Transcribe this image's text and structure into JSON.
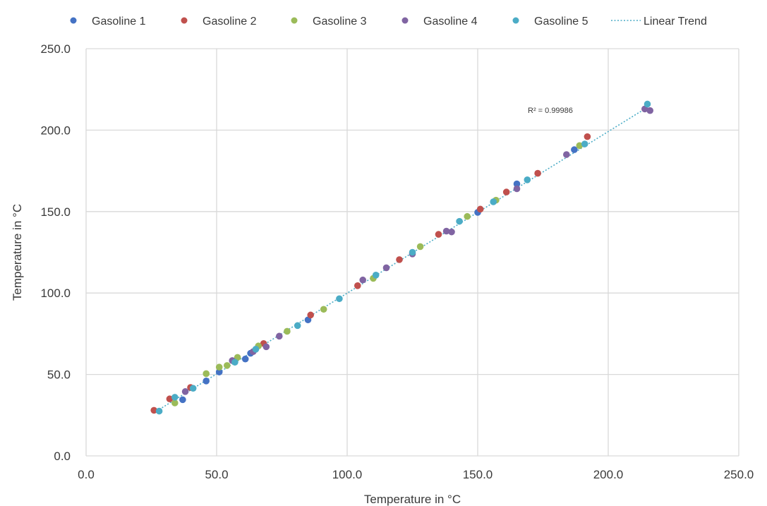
{
  "chart_data": {
    "type": "scatter",
    "xlabel": "Temperature in °C",
    "ylabel": "Temperature in °C",
    "xlim": [
      0,
      250
    ],
    "ylim": [
      0,
      250
    ],
    "x_ticks": [
      "0.0",
      "50.0",
      "100.0",
      "150.0",
      "200.0",
      "250.0"
    ],
    "y_ticks": [
      "0.0",
      "50.0",
      "100.0",
      "150.0",
      "200.0",
      "250.0"
    ],
    "grid": true,
    "legend_position": "top",
    "annotation": "R² = 0.99986",
    "series": [
      {
        "name": "Gasoline 1",
        "color": "#4472c4",
        "points": [
          [
            37,
            34.5
          ],
          [
            46,
            46
          ],
          [
            51,
            51.5
          ],
          [
            61,
            59.5
          ],
          [
            63,
            63
          ],
          [
            85,
            83.5
          ],
          [
            150,
            149.5
          ],
          [
            165,
            167
          ],
          [
            187,
            188
          ]
        ]
      },
      {
        "name": "Gasoline 2",
        "color": "#c0504d",
        "points": [
          [
            26,
            28
          ],
          [
            32,
            35
          ],
          [
            40,
            42
          ],
          [
            68,
            69
          ],
          [
            86,
            86.5
          ],
          [
            104,
            104.5
          ],
          [
            120,
            120.5
          ],
          [
            135,
            136
          ],
          [
            151,
            151.5
          ],
          [
            161,
            162
          ],
          [
            173,
            173.5
          ],
          [
            192,
            196
          ]
        ]
      },
      {
        "name": "Gasoline 3",
        "color": "#9bbb59",
        "points": [
          [
            34,
            32.5
          ],
          [
            46,
            50.5
          ],
          [
            51,
            54.5
          ],
          [
            54,
            55.5
          ],
          [
            58,
            60.5
          ],
          [
            66,
            67.5
          ],
          [
            77,
            76.5
          ],
          [
            91,
            90
          ],
          [
            110,
            109
          ],
          [
            128,
            128.5
          ],
          [
            146,
            147
          ],
          [
            157,
            157
          ],
          [
            189,
            190.5
          ]
        ]
      },
      {
        "name": "Gasoline 4",
        "color": "#8064a2",
        "points": [
          [
            38,
            39.5
          ],
          [
            56,
            58.5
          ],
          [
            64,
            64
          ],
          [
            69,
            67
          ],
          [
            74,
            73.5
          ],
          [
            106,
            108
          ],
          [
            115,
            115.5
          ],
          [
            125,
            124
          ],
          [
            138,
            138
          ],
          [
            140,
            137.5
          ],
          [
            165,
            164
          ],
          [
            184,
            185
          ],
          [
            216,
            212
          ],
          [
            214,
            213
          ]
        ]
      },
      {
        "name": "Gasoline 5",
        "color": "#4bacc6",
        "points": [
          [
            28,
            27.5
          ],
          [
            34,
            36
          ],
          [
            41,
            41.5
          ],
          [
            57,
            57.5
          ],
          [
            65,
            65.5
          ],
          [
            81,
            80
          ],
          [
            97,
            96.5
          ],
          [
            111,
            111
          ],
          [
            125,
            125
          ],
          [
            143,
            144
          ],
          [
            156,
            156
          ],
          [
            169,
            169.5
          ],
          [
            191,
            191.5
          ],
          [
            215,
            216
          ]
        ]
      }
    ],
    "trendline": {
      "name": "Linear Trend",
      "color": "#4bacc6",
      "style": "dotted",
      "from": [
        27,
        27.5
      ],
      "to": [
        215,
        214
      ]
    }
  }
}
